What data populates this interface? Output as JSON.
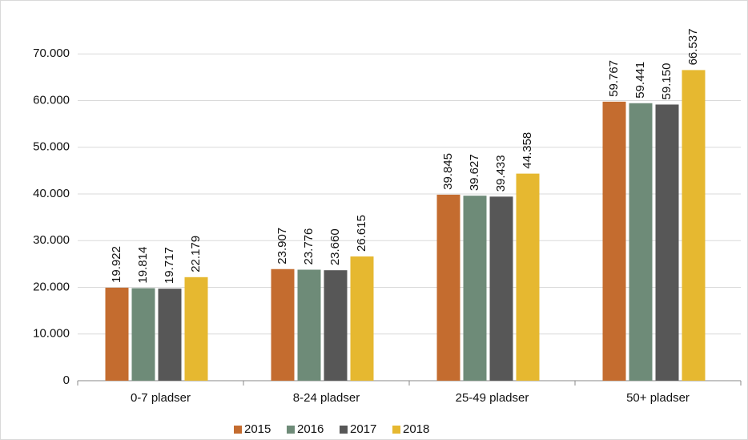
{
  "chart_data": {
    "type": "bar",
    "categories": [
      "0-7 pladser",
      "8-24 pladser",
      "25-49 pladser",
      "50+ pladser"
    ],
    "series": [
      {
        "name": "2015",
        "color": "#c46c2f",
        "values": [
          19922,
          23907,
          39845,
          59767
        ],
        "value_labels": [
          "19.922",
          "23.907",
          "39.845",
          "59.767"
        ]
      },
      {
        "name": "2016",
        "color": "#6e8b78",
        "values": [
          19814,
          23776,
          39627,
          59441
        ],
        "value_labels": [
          "19.814",
          "23.776",
          "39.627",
          "59.441"
        ]
      },
      {
        "name": "2017",
        "color": "#575757",
        "values": [
          19717,
          23660,
          39433,
          59150
        ],
        "value_labels": [
          "19.717",
          "23.660",
          "39.433",
          "59.150"
        ]
      },
      {
        "name": "2018",
        "color": "#e6b830",
        "values": [
          22179,
          26615,
          44358,
          66537
        ],
        "value_labels": [
          "22.179",
          "26.615",
          "44.358",
          "66.537"
        ]
      }
    ],
    "ylim": [
      0,
      80000
    ],
    "yticks": [
      0,
      {
        "value": 10000,
        "label": "10.000"
      },
      {
        "value": 20000,
        "label": "20.000"
      },
      {
        "value": 30000,
        "label": "30.000"
      },
      {
        "value": 40000,
        "label": "40.000"
      },
      {
        "value": 50000,
        "label": "50.000"
      },
      {
        "value": 60000,
        "label": "60.000"
      },
      {
        "value": 70000,
        "label": "70.000"
      }
    ],
    "grid": true,
    "legend": "bottom"
  }
}
